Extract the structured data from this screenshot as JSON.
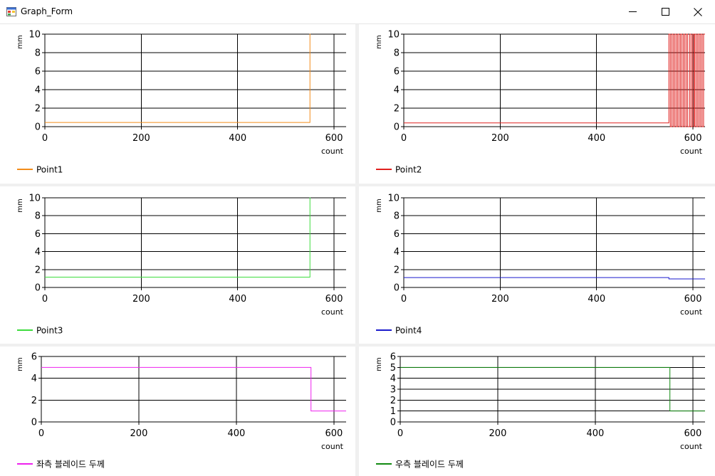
{
  "window": {
    "title": "Graph_Form",
    "icons": {
      "app": "form-app-icon",
      "minimize": "minimize-icon",
      "maximize": "maximize-icon",
      "close": "close-icon"
    }
  },
  "chart_data": [
    {
      "type": "line",
      "ylabel": "mm",
      "xlabel": "count",
      "xlim": [
        0,
        625
      ],
      "ylim": [
        0,
        10
      ],
      "xticks": [
        0,
        200,
        400,
        600
      ],
      "yticks": [
        0,
        2,
        4,
        6,
        8,
        10
      ],
      "hgrid": [
        0,
        2,
        4,
        6,
        8,
        10
      ],
      "series": [
        {
          "name": "Point1",
          "color": "#f28c1a",
          "x": [
            0,
            550,
            550,
            551,
            551
          ],
          "y": [
            0.45,
            0.45,
            10,
            10,
            10
          ]
        }
      ]
    },
    {
      "type": "line",
      "ylabel": "mm",
      "xlabel": "count",
      "xlim": [
        0,
        625
      ],
      "ylim": [
        0,
        10
      ],
      "xticks": [
        0,
        200,
        400,
        600
      ],
      "yticks": [
        0,
        2,
        4,
        6,
        8,
        10
      ],
      "hgrid": [
        0,
        2,
        4,
        6,
        8,
        10
      ],
      "series": [
        {
          "name": "Point2",
          "color": "#e0201e",
          "x": [
            0,
            550,
            550,
            553,
            553,
            556,
            556,
            559,
            559,
            562,
            562,
            565,
            565,
            568,
            568,
            571,
            571,
            574,
            574,
            577,
            577,
            580,
            580,
            583,
            583,
            586,
            586,
            589,
            589,
            593,
            593,
            596,
            596,
            599,
            599,
            602,
            602,
            604,
            604,
            607,
            607,
            610,
            610,
            613,
            613,
            616,
            616,
            619,
            619,
            622,
            622,
            625
          ],
          "y": [
            0.4,
            0.4,
            10,
            10,
            0,
            0,
            10,
            10,
            0,
            0,
            10,
            10,
            0,
            0,
            10,
            10,
            0,
            0,
            10,
            10,
            0,
            0,
            10,
            10,
            0,
            0,
            10,
            10,
            0,
            0,
            10,
            10,
            0,
            0,
            10,
            10,
            0,
            0,
            10,
            10,
            0,
            0,
            10,
            10,
            0,
            0,
            10,
            10,
            0,
            0,
            10,
            10
          ]
        }
      ]
    },
    {
      "type": "line",
      "ylabel": "mm",
      "xlabel": "count",
      "xlim": [
        0,
        625
      ],
      "ylim": [
        0,
        10
      ],
      "xticks": [
        0,
        200,
        400,
        600
      ],
      "yticks": [
        0,
        2,
        4,
        6,
        8,
        10
      ],
      "hgrid": [
        0,
        2,
        4,
        6,
        8,
        10
      ],
      "series": [
        {
          "name": "Point3",
          "color": "#3ddc3d",
          "x": [
            0,
            550,
            550,
            551
          ],
          "y": [
            1.15,
            1.15,
            10,
            10
          ]
        }
      ]
    },
    {
      "type": "line",
      "ylabel": "mm",
      "xlabel": "count",
      "xlim": [
        0,
        625
      ],
      "ylim": [
        0,
        10
      ],
      "xticks": [
        0,
        200,
        400,
        600
      ],
      "yticks": [
        0,
        2,
        4,
        6,
        8,
        10
      ],
      "hgrid": [
        0,
        2,
        4,
        6,
        8,
        10
      ],
      "series": [
        {
          "name": "Point4",
          "color": "#1a1acc",
          "x": [
            0,
            550,
            550,
            625
          ],
          "y": [
            1.1,
            1.1,
            0.95,
            0.95
          ]
        }
      ]
    },
    {
      "type": "line",
      "ylabel": "mm",
      "xlabel": "count",
      "xlim": [
        0,
        625
      ],
      "ylim": [
        0,
        6
      ],
      "xticks": [
        0,
        200,
        400,
        600
      ],
      "yticks": [
        0,
        2,
        4,
        6
      ],
      "hgrid": [
        0,
        2,
        4,
        6
      ],
      "series": [
        {
          "name": "좌측 블레이드 두께",
          "color": "#ee22ee",
          "x": [
            0,
            553,
            553,
            625
          ],
          "y": [
            5,
            5,
            1,
            1
          ]
        }
      ]
    },
    {
      "type": "line",
      "ylabel": "mm",
      "xlabel": "count",
      "xlim": [
        0,
        625
      ],
      "ylim": [
        0,
        6
      ],
      "xticks": [
        0,
        200,
        400,
        600
      ],
      "yticks": [
        0,
        1,
        2,
        3,
        4,
        5,
        6
      ],
      "hgrid": [
        0,
        1,
        2,
        3,
        4,
        5,
        6
      ],
      "series": [
        {
          "name": "우측 블레이드 두께",
          "color": "#118a11",
          "x": [
            0,
            553,
            553,
            625
          ],
          "y": [
            5,
            5,
            1,
            1
          ]
        }
      ]
    }
  ]
}
